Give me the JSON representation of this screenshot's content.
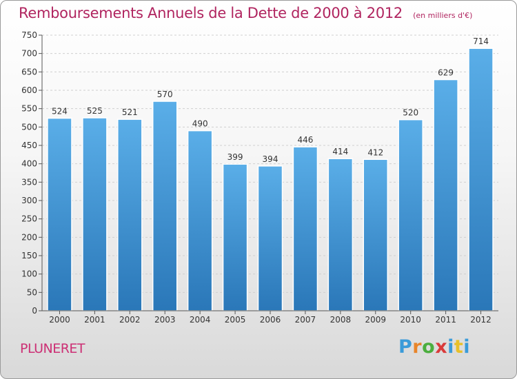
{
  "title": "Remboursements Annuels de la Dette de 2000 à 2012",
  "subtitle": "(en milliers d'€)",
  "place": "PLUNERET",
  "logo": {
    "text": "Proxiti",
    "colors": [
      "#3a9bd9",
      "#e8852a",
      "#4bae3e",
      "#d93b3b",
      "#3a9bd9",
      "#e8c02a",
      "#3a9bd9"
    ]
  },
  "colors": {
    "bar_light": "#5aaee8",
    "bar_dark": "#2a77b8",
    "title": "#b0245f",
    "place": "#cc2f74"
  },
  "chart_data": {
    "type": "bar",
    "title": "Remboursements Annuels de la Dette de 2000 à 2012",
    "subtitle": "(en milliers d'€)",
    "categories": [
      "2000",
      "2001",
      "2002",
      "2003",
      "2004",
      "2005",
      "2006",
      "2007",
      "2008",
      "2009",
      "2010",
      "2011",
      "2012"
    ],
    "values": [
      524,
      525,
      521,
      570,
      490,
      399,
      394,
      446,
      414,
      412,
      520,
      629,
      714
    ],
    "ylim": [
      0,
      750
    ],
    "yticks": [
      0,
      50,
      100,
      150,
      200,
      250,
      300,
      350,
      400,
      450,
      500,
      550,
      600,
      650,
      700,
      750
    ],
    "grid": true,
    "data_labels": true
  }
}
